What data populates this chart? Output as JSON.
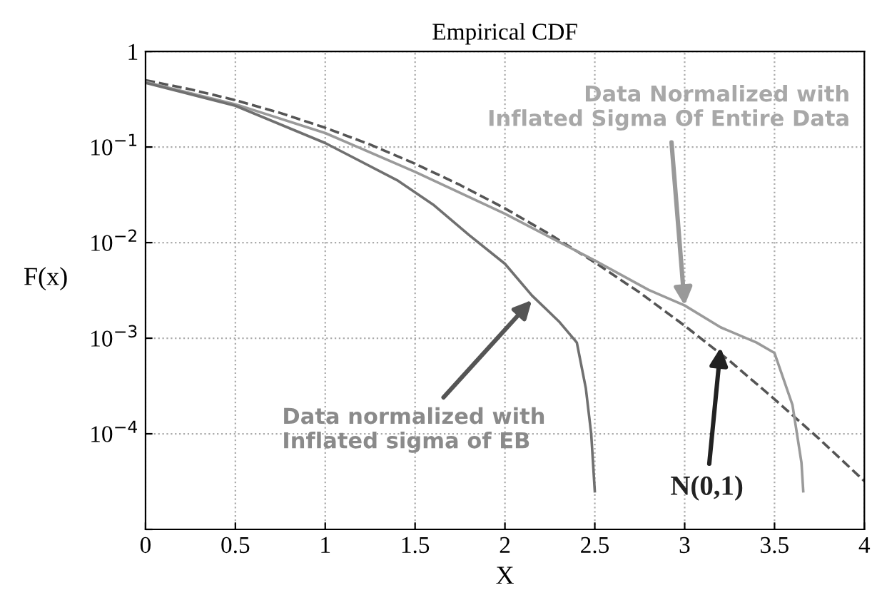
{
  "chart_data": {
    "type": "line",
    "title": "Empirical CDF",
    "xlabel": "X",
    "ylabel": "F(x)",
    "log": "y",
    "grid": true,
    "xlim": [
      0,
      4
    ],
    "ylim": [
      1e-05,
      1
    ],
    "xticks": [
      0,
      0.5,
      1,
      1.5,
      2,
      2.5,
      3,
      3.5,
      4
    ],
    "yticks": [
      {
        "value": 1,
        "label": "1"
      },
      {
        "value": 0.1,
        "label": "10$^{−1}$"
      },
      {
        "value": 0.01,
        "label": "10$^{−2}$"
      },
      {
        "value": 0.001,
        "label": "10$^{−3}$"
      },
      {
        "value": 0.0001,
        "label": "10$^{−4}$"
      },
      {
        "value": 1e-05,
        "label": null
      }
    ],
    "series": [
      {
        "color": "#555555",
        "line_style": "dashed",
        "x": [
          0,
          0.25,
          0.5,
          0.75,
          1,
          1.25,
          1.5,
          1.75,
          2,
          2.25,
          2.5,
          2.75,
          3,
          3.25,
          3.5,
          3.75,
          4
        ],
        "values": [
          0.5,
          0.401,
          0.309,
          0.227,
          0.159,
          0.106,
          0.0668,
          0.0401,
          0.0228,
          0.0122,
          0.0062,
          0.003,
          0.00135,
          0.00058,
          0.00023,
          8.8e-05,
          3.2e-05
        ]
      },
      {
        "color": "#9a9a9a",
        "line_style": "solid",
        "x": [
          0,
          0.5,
          1,
          1.5,
          2,
          2.5,
          2.8,
          3,
          3.2,
          3.4,
          3.5,
          3.6,
          3.65,
          3.66
        ],
        "values": [
          0.48,
          0.28,
          0.14,
          0.055,
          0.02,
          0.0065,
          0.0032,
          0.0022,
          0.0013,
          0.0009,
          0.0007,
          0.0002,
          5e-05,
          2.5e-05
        ]
      },
      {
        "color": "#707070",
        "line_style": "solid",
        "x": [
          0,
          0.5,
          1,
          1.4,
          1.6,
          1.8,
          2,
          2.15,
          2.3,
          2.4,
          2.45,
          2.48,
          2.5
        ],
        "values": [
          0.47,
          0.27,
          0.11,
          0.045,
          0.025,
          0.012,
          0.006,
          0.0028,
          0.0015,
          0.0009,
          0.0003,
          0.0001,
          2.5e-05
        ]
      }
    ],
    "annotations": [
      {
        "text": "Data Normalized with\nInflated Sigma Of Entire Data",
        "x": 3,
        "y": 0.0022
      },
      {
        "text": "Data normalized with\nInflated sigma of EB",
        "x": 2.15,
        "y": 0.0025
      },
      {
        "text": "N(0,1)",
        "x": 3.2,
        "y": 0.0008
      }
    ]
  }
}
